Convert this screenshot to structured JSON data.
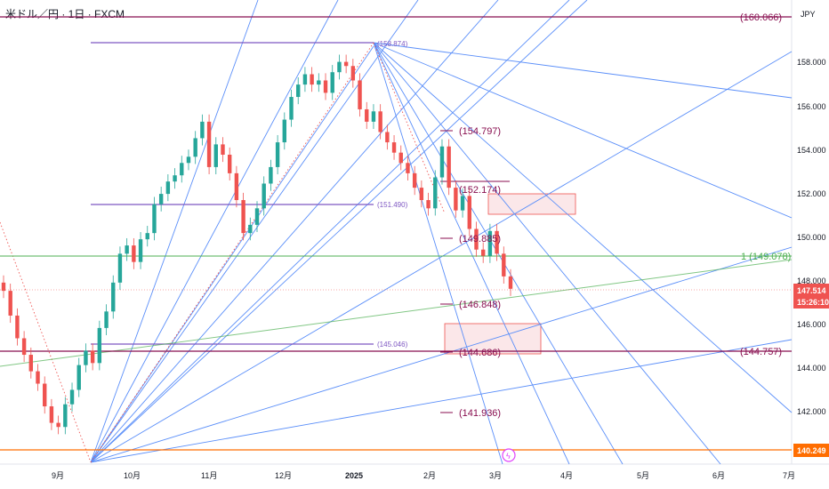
{
  "header": {
    "title": "米ドル／円 · 1日 · FXCM",
    "currency": "JPY"
  },
  "colors": {
    "up": "#26a69a",
    "down": "#ef5350",
    "fan": "#5b8ff9",
    "fib": "#7e57c2",
    "level": "#880e4f",
    "green": "#4caf50",
    "orange": "#ff6d00"
  },
  "price_scale": {
    "ticks": [
      "158.000",
      "156.000",
      "154.000",
      "152.000",
      "150.000",
      "148.000",
      "146.000",
      "144.000",
      "142.000"
    ],
    "last_price": "147.514",
    "countdown": "15:26:10",
    "support_tag": "140.249"
  },
  "time_axis": {
    "labels": [
      "9月",
      "10月",
      "11月",
      "12月",
      "2025",
      "2月",
      "3月",
      "4月",
      "5月",
      "6月",
      "7月"
    ]
  },
  "annotations": {
    "top_level": "(160.066)",
    "peak": "(158.874)",
    "fib_mid": "(151.490)",
    "fib_low": "(145.046)",
    "green_level": "1 (149.078)",
    "bottom_level": "(144.757)",
    "proj_1": "(154.797)",
    "proj_2": "(152.174)",
    "proj_3": "(149.885)",
    "proj_4": "(146.848)",
    "proj_5": "(144.686)",
    "proj_6": "(141.936)"
  },
  "chart_data": {
    "type": "candlestick",
    "title": "米ドル／円 · 1日 · FXCM",
    "y_range": [
      139.0,
      161.5
    ],
    "x_labels": [
      "9月",
      "10月",
      "11月",
      "12月",
      "2025",
      "2月",
      "3月",
      "4月",
      "5月",
      "6月",
      "7月"
    ],
    "candles_close_approx": [
      147.4,
      146.2,
      145.1,
      144.3,
      143.5,
      142.9,
      141.8,
      141.0,
      140.8,
      141.9,
      142.6,
      143.8,
      144.5,
      143.9,
      145.6,
      146.4,
      147.8,
      149.2,
      149.6,
      148.8,
      149.9,
      150.2,
      151.6,
      152.1,
      152.7,
      153.0,
      153.6,
      153.9,
      154.8,
      155.6,
      153.4,
      154.5,
      154.0,
      153.1,
      151.8,
      150.2,
      150.6,
      151.4,
      152.6,
      153.4,
      154.6,
      155.7,
      156.8,
      157.4,
      157.9,
      157.4,
      157.6,
      157.0,
      158.0,
      158.5,
      158.3,
      157.6,
      156.2,
      155.6,
      156.1,
      155.1,
      154.6,
      154.1,
      153.6,
      153.1,
      152.4,
      151.8,
      151.4,
      152.9,
      154.4,
      152.4,
      151.3,
      152.0,
      150.4,
      149.4,
      149.1,
      150.3,
      149.2,
      148.1,
      147.5
    ],
    "levels": [
      160.066,
      158.874,
      151.49,
      149.078,
      145.046,
      144.757,
      140.249
    ]
  }
}
